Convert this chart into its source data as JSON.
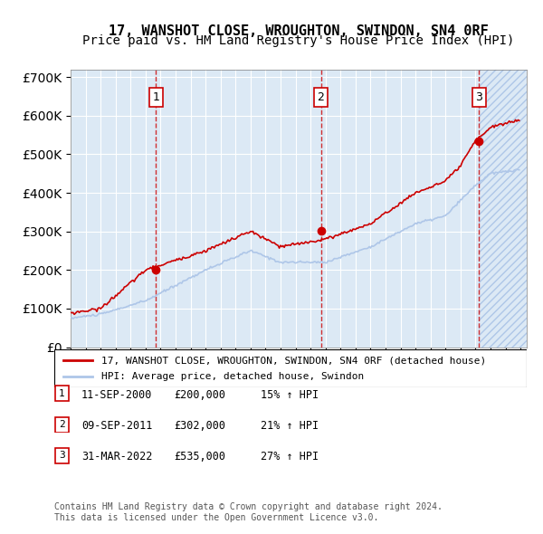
{
  "title": "17, WANSHOT CLOSE, WROUGHTON, SWINDON, SN4 0RF",
  "subtitle": "Price paid vs. HM Land Registry's House Price Index (HPI)",
  "ylabel": "",
  "ylim": [
    0,
    720000
  ],
  "yticks": [
    0,
    100000,
    200000,
    300000,
    400000,
    500000,
    600000,
    700000
  ],
  "sale_dates": [
    "2000-09-11",
    "2011-09-09",
    "2022-03-31"
  ],
  "sale_prices": [
    200000,
    302000,
    535000
  ],
  "sale_labels": [
    "1",
    "2",
    "3"
  ],
  "legend_property": "17, WANSHOT CLOSE, WROUGHTON, SWINDON, SN4 0RF (detached house)",
  "legend_hpi": "HPI: Average price, detached house, Swindon",
  "table_rows": [
    {
      "num": "1",
      "date": "11-SEP-2000",
      "price": "£200,000",
      "pct": "15% ↑ HPI"
    },
    {
      "num": "2",
      "date": "09-SEP-2011",
      "price": "£302,000",
      "pct": "21% ↑ HPI"
    },
    {
      "num": "3",
      "date": "31-MAR-2022",
      "price": "£535,000",
      "pct": "27% ↑ HPI"
    }
  ],
  "footnote": "Contains HM Land Registry data © Crown copyright and database right 2024.\nThis data is licensed under the Open Government Licence v3.0.",
  "property_line_color": "#cc0000",
  "hpi_line_color": "#aec6e8",
  "vline_color": "#cc0000",
  "background_color": "#dce9f5",
  "hatch_color": "#c8d8ea",
  "title_fontsize": 11,
  "subtitle_fontsize": 10
}
